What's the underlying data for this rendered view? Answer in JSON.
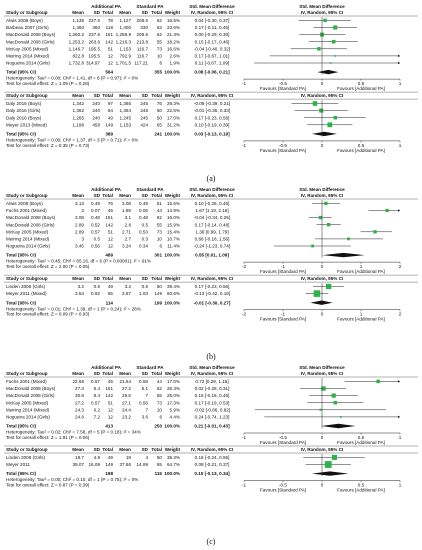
{
  "chart_data": [
    {
      "type": "forest",
      "panel_label": "(a)",
      "header": {
        "group1": "Additional PA",
        "group2": "Standard PA",
        "effect": "Std. Mean Difference",
        "effect_method": "IV, Random, 95% CI",
        "col_study": "Study or Subgroup",
        "col_mean": "Mean",
        "col_sd": "SD",
        "col_total": "Total",
        "col_weight": "Weight"
      },
      "axis": {
        "min": -1,
        "max": 1,
        "ticks": [
          "-1",
          "-0.5",
          "0",
          "0.5",
          "1"
        ],
        "favours_left": "Favours [Standard PA]",
        "favours_right": "Favours [Additional PA]"
      },
      "subgroups": [
        {
          "studies": [
            {
              "name": "Alwis 2008 (Boys)",
              "m1": "1,135",
              "sd1": "237.6",
              "n1": "78",
              "m2": "1,127",
              "sd2": "208.6",
              "n2": "62",
              "w": "16.6%",
              "ci_text": "0.04 [-0.30, 0.37]",
              "est": 0.04,
              "lo": -0.3,
              "hi": 0.37
            },
            {
              "name": "Barbeau 2007 (Girls)",
              "m1": "1,460",
              "sd1": "360",
              "n1": "118",
              "m2": "1,400",
              "sd2": "330",
              "n2": "63",
              "w": "23.6%",
              "ci_text": "0.17 [-0.11, 0.45]",
              "est": 0.17,
              "lo": -0.11,
              "hi": 0.45
            },
            {
              "name": "MacDonald 2008 (Boys)",
              "m1": "1,260.2",
              "sd1": "237.6",
              "n1": "151",
              "m2": "1,259.9",
              "sd2": "208.6",
              "n2": "62",
              "w": "21.3%",
              "ci_text": "0.00 [-0.29, 0.30]",
              "est": 0.0,
              "lo": -0.29,
              "hi": 0.3
            },
            {
              "name": "MacDonald 2008 (Girls)",
              "m1": "1,253.2",
              "sd1": "263.6",
              "n1": "142",
              "m2": "1,216.3",
              "sd2": "213.8",
              "n2": "55",
              "w": "18.2%",
              "ci_text": "0.15 [-0.17, 0.46]",
              "est": 0.15,
              "lo": -0.17,
              "hi": 0.46
            },
            {
              "name": "McKay 2005 (Mixed)",
              "m1": "1,146.7",
              "sd1": "195.5",
              "n1": "51",
              "m2": "1,153",
              "sd2": "116.7",
              "n2": "73",
              "w": "16.6%",
              "ci_text": "-0.04 [-0.40, 0.32]",
              "est": -0.04,
              "lo": -0.4,
              "hi": 0.32
            },
            {
              "name": "Meiring 2014 (Mixed)",
              "m1": "822.8",
              "sd1": "195.5",
              "n1": "12",
              "m2": "792.9",
              "sd2": "116.7",
              "n2": "10",
              "w": "2.6%",
              "ci_text": "0.17 [-0.67, 1.01]",
              "est": 0.17,
              "lo": -0.67,
              "hi": 1.01
            },
            {
              "name": "Nogueira 2014 (Girls)",
              "m1": "1,732.8",
              "sd1": "314.97",
              "n1": "12",
              "m2": "1,701.5",
              "sd2": "117.21",
              "n2": "6",
              "w": "1.9%",
              "ci_text": "0.11 [-0.87, 1.09]",
              "est": 0.11,
              "lo": -0.87,
              "hi": 1.09
            }
          ],
          "total": {
            "name": "Total (95% CI)",
            "n1": "564",
            "n2": "355",
            "w": "100.0%",
            "ci_text": "0.08 [-0.06, 0.21]",
            "est": 0.08,
            "lo": -0.06,
            "hi": 0.21
          },
          "heterogeneity": "Heterogeneity: Tau² = 0.00; Chi² = 1.41, df = 6 (P = 0.97); I² = 0%",
          "overall": "Test for overall effect: Z = 1.09 (P = 0.28)"
        },
        {
          "studies": [
            {
              "name": "Daly 2016 (Boys)",
              "m1": "1,342",
              "sd1": "240",
              "n1": "97",
              "m2": "1,365",
              "sd2": "245",
              "n2": "76",
              "w": "29.3%",
              "ci_text": "-0.09 [-0.39, 0.21]",
              "est": -0.09,
              "lo": -0.39,
              "hi": 0.21
            },
            {
              "name": "Daly 2016 (Girls)",
              "m1": "1,362",
              "sd1": "240",
              "n1": "94",
              "m2": "1,364",
              "sd2": "245",
              "n2": "50",
              "w": "22.5%",
              "ci_text": "-0.01 [-0.35, 0.33]",
              "est": -0.01,
              "lo": -0.35,
              "hi": 0.33
            },
            {
              "name": "Daly 2016 (Boys)",
              "m1": "1,265",
              "sd1": "240",
              "n1": "49",
              "m2": "1,245",
              "sd2": "245",
              "n2": "50",
              "w": "17.0%",
              "ci_text": "0.17 [-0.23, 0.56]",
              "est": 0.17,
              "lo": -0.23,
              "hi": 0.56
            },
            {
              "name": "Meyer 2013 (Mixed)",
              "m1": "1,198",
              "sd1": "458",
              "n1": "149",
              "m2": "1,153",
              "sd2": "424",
              "n2": "65",
              "w": "31.2%",
              "ci_text": "0.10 [-0.19, 0.39]",
              "est": 0.1,
              "lo": -0.19,
              "hi": 0.39
            }
          ],
          "total": {
            "name": "Total (95% CI)",
            "n1": "389",
            "n2": "241",
            "w": "100.0%",
            "ci_text": "0.03 [-0.13, 0.19]",
            "est": 0.03,
            "lo": -0.13,
            "hi": 0.19
          },
          "heterogeneity": "Heterogeneity: Tau² = 0.00; Chi² = 1.37, df = 3 (P = 0.71); I² = 0%",
          "overall": "Test for overall effect: Z = 0.35 (P = 0.73)"
        }
      ]
    },
    {
      "type": "forest",
      "panel_label": "(b)",
      "header": {
        "group1": "Additional PA",
        "group2": "Standard PA",
        "effect": "Std. Mean Difference",
        "effect_method": "IV, Random, 95% CI",
        "col_study": "Study or Subgroup",
        "col_mean": "Mean",
        "col_sd": "SD",
        "col_total": "Total",
        "col_weight": "Weight"
      },
      "axis": {
        "min": -2,
        "max": 2,
        "ticks": [
          "-2",
          "-1",
          "0",
          "1",
          "2"
        ],
        "favours_left": "Favours [Standard PA]",
        "favours_right": "Favours [Additional PA]"
      },
      "subgroups": [
        {
          "studies": [
            {
              "name": "Alwis 2008 (Boys)",
              "m1": "3.13",
              "sd1": "0.49",
              "n1": "76",
              "m2": "3.08",
              "sd2": "0.49",
              "n2": "51",
              "w": "15.6%",
              "ci_text": "0.10 [-0.25, 0.46]",
              "est": 0.1,
              "lo": -0.25,
              "hi": 0.46
            },
            {
              "name": "Fuchs 2001 (Mixed)",
              "m1": "2",
              "sd1": "0.07",
              "n1": "45",
              "m2": "1.89",
              "sd2": "0.06",
              "n2": "44",
              "w": "14.9%",
              "ci_text": "1.67 [1.19, 2.16]",
              "est": 1.67,
              "lo": 1.19,
              "hi": 2.16
            },
            {
              "name": "MacDonald 2008 (Boys)",
              "m1": "3.08",
              "sd1": "0.48",
              "n1": "151",
              "m2": "3.1",
              "sd2": "0.48",
              "n2": "62",
              "w": "16.0%",
              "ci_text": "-0.04 [-0.34, 0.25]",
              "est": -0.04,
              "lo": -0.34,
              "hi": 0.25
            },
            {
              "name": "MacDonald 2008 (Girls)",
              "m1": "2.89",
              "sd1": "0.52",
              "n1": "142",
              "m2": "2.8",
              "sd2": "0.5",
              "n2": "55",
              "w": "15.9%",
              "ci_text": "0.17 [-0.14, 0.48]",
              "est": 0.17,
              "lo": -0.14,
              "hi": 0.48
            },
            {
              "name": "McKay 2005 (Mixed)",
              "m1": "2.89",
              "sd1": "0.57",
              "n1": "51",
              "m2": "2.71",
              "sd2": "0.53",
              "n2": "73",
              "w": "15.4%",
              "ci_text": "1.36 [0.99, 1.79]",
              "est": 1.36,
              "lo": 0.99,
              "hi": 1.79
            },
            {
              "name": "Meiring 2014 (Mixed)",
              "m1": "3",
              "sd1": "0.5",
              "n1": "12",
              "m2": "2.7",
              "sd2": "0.3",
              "n2": "10",
              "w": "10.7%",
              "ci_text": "0.68 [-0.18, 1.56]",
              "est": 0.68,
              "lo": -0.18,
              "hi": 1.56
            },
            {
              "name": "Nogueira 2014 (Girls)",
              "m1": "3.45",
              "sd1": "0.56",
              "n1": "12",
              "m2": "3.24",
              "sd2": "0.34",
              "n2": "6",
              "w": "11.4%",
              "ci_text": "-0.24 [-1.23, 0.74]",
              "est": -0.24,
              "lo": -1.23,
              "hi": 0.74
            }
          ],
          "total": {
            "name": "Total (95% CI)",
            "n1": "489",
            "n2": "301",
            "w": "100.0%",
            "ci_text": "0.55 [0.01, 1.09]",
            "est": 0.55,
            "lo": 0.01,
            "hi": 1.09
          },
          "heterogeneity": "Heterogeneity: Tau² = 0.45; Chi² = 65.16, df = 6 (P < 0.00001); I² = 91%",
          "overall": "Test for overall effect: Z = 2.00 (P = 0.05)"
        },
        {
          "studies": [
            {
              "name": "Linden 2006 (Girls)",
              "m1": "3.2",
              "sd1": "0.6",
              "n1": "49",
              "m2": "3.2",
              "sd2": "0.6",
              "n2": "50",
              "w": "39.4%",
              "ci_text": "0.17 [-0.23, 0.56]",
              "est": 0.17,
              "lo": -0.23,
              "hi": 0.56
            },
            {
              "name": "Meyer 2011 (Mixed)",
              "m1": "3.54",
              "sd1": "0.92",
              "n1": "65",
              "m2": "3.67",
              "sd2": "1.03",
              "n2": "149",
              "w": "60.6%",
              "ci_text": "-0.13 [-0.42, 0.16]",
              "est": -0.13,
              "lo": -0.42,
              "hi": 0.16
            }
          ],
          "total": {
            "name": "Total (95% CI)",
            "n1": "114",
            "n2": "199",
            "w": "100.0%",
            "ci_text": "-0.01 [-0.30, 0.27]",
            "est": -0.01,
            "lo": -0.3,
            "hi": 0.27
          },
          "heterogeneity": "Heterogeneity: Tau² = 0.01; Chi² = 1.39, df = 1 (P = 0.24); I² = 28%",
          "overall": "Test for overall effect: Z = 0.09 (P = 0.93)"
        }
      ]
    },
    {
      "type": "forest",
      "panel_label": "(c)",
      "header": {
        "group1": "Additional PA",
        "group2": "Standard PA",
        "effect": "Std. Mean Difference",
        "effect_method": "IV, Random, 95% CI",
        "col_study": "Study or Subgroup",
        "col_mean": "Mean",
        "col_sd": "SD",
        "col_total": "Total",
        "col_weight": "Weight"
      },
      "axis": {
        "min": -1,
        "max": 1,
        "ticks": [
          "-1",
          "-0.5",
          "0",
          "0.5",
          "1"
        ],
        "favours_left": "Favours [Standard PA]",
        "favours_right": "Favours [Additional PA]"
      },
      "subgroups": [
        {
          "studies": [
            {
              "name": "Fuchs 2001 (Mixed)",
              "m1": "22.66",
              "sd1": "0.57",
              "n1": "45",
              "m2": "21.64",
              "sd2": "0.58",
              "n2": "44",
              "w": "17.0%",
              "ci_text": "0.72 [0.29, 1.15]",
              "est": 0.72,
              "lo": 0.29,
              "hi": 1.15
            },
            {
              "name": "MacDonald 2008 (Boys)",
              "m1": "27.3",
              "sd1": "6.4",
              "n1": "151",
              "m2": "27.2",
              "sd2": "5.1",
              "n2": "62",
              "w": "26.3%",
              "ci_text": "0.02 [-0.28, 0.31]",
              "est": 0.02,
              "lo": -0.28,
              "hi": 0.31
            },
            {
              "name": "MacDonald 2008 (Girls)",
              "m1": "30.8",
              "sd1": "8.4",
              "n1": "142",
              "m2": "29.6",
              "sd2": "7",
              "n2": "55",
              "w": "25.0%",
              "ci_text": "0.15 [-0.16, 0.46]",
              "est": 0.15,
              "lo": -0.16,
              "hi": 0.46
            },
            {
              "name": "McKay 2005 (Mixed)",
              "m1": "27.2",
              "sd1": "0.57",
              "n1": "51",
              "m2": "27.1",
              "sd2": "0.58",
              "n2": "73",
              "w": "17.3%",
              "ci_text": "0.17 [-0.19, 0.53]",
              "est": 0.17,
              "lo": -0.19,
              "hi": 0.53
            },
            {
              "name": "Meiring 2014 (Mixed)",
              "m1": "24.3",
              "sd1": "6.2",
              "n1": "12",
              "m2": "24.4",
              "sd2": "7",
              "n2": "10",
              "w": "5.9%",
              "ci_text": "-0.02 [-0.86, 0.82]",
              "est": -0.02,
              "lo": -0.86,
              "hi": 0.82
            },
            {
              "name": "Nogueira 2014 (Girls)",
              "m1": "24.8",
              "sd1": "7.2",
              "n1": "12",
              "m2": "23.2",
              "sd2": "3.6",
              "n2": "6",
              "w": "4.4%",
              "ci_text": "0.24 [-0.74, 1.23]",
              "est": 0.24,
              "lo": -0.74,
              "hi": 1.23
            }
          ],
          "total": {
            "name": "Total (95% CI)",
            "n1": "413",
            "n2": "250",
            "w": "100.0%",
            "ci_text": "0.21 [-0.01, 0.43]",
            "est": 0.21,
            "lo": -0.01,
            "hi": 0.43
          },
          "heterogeneity": "Heterogeneity: Tau² = 0.02; Chi² = 7.58, df = 5 (P = 0.18); I² = 34%",
          "overall": "Test for overall effect: Z = 1.91 (P = 0.06)"
        },
        {
          "studies": [
            {
              "name": "Linden 2006 (Girls)",
              "m1": "19.7",
              "sd1": "4.9",
              "n1": "49",
              "m2": "19",
              "sd2": "4",
              "n2": "50",
              "w": "35.3%",
              "ci_text": "0.16 [-0.24, 0.55]",
              "est": 0.16,
              "lo": -0.24,
              "hi": 0.55
            },
            {
              "name": "Meyer 2011",
              "m1": "39.07",
              "sd1": "16.09",
              "n1": "149",
              "m2": "37.86",
              "sd2": "14.99",
              "n2": "65",
              "w": "64.7%",
              "ci_text": "0.08 [-0.21, 0.37]",
              "est": 0.08,
              "lo": -0.21,
              "hi": 0.37
            }
          ],
          "total": {
            "name": "Total (95% CI)",
            "n1": "198",
            "n2": "115",
            "w": "100.0%",
            "ci_text": "0.10 [-0.13, 0.34]",
            "est": 0.1,
            "lo": -0.13,
            "hi": 0.34
          },
          "heterogeneity": "Heterogeneity: Tau² = 0.00; Chi² = 0.10, df = 1 (P = 0.75); I² = 0%",
          "overall": "Test for overall effect: Z = 0.87 (P = 0.39)"
        }
      ]
    }
  ]
}
